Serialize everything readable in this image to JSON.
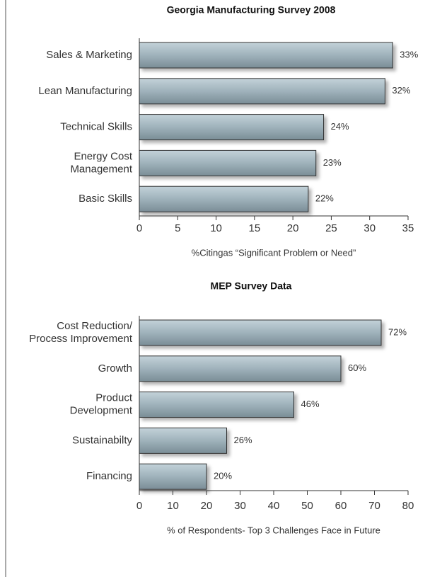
{
  "chart_data": [
    {
      "type": "bar",
      "title": "Georgia Manufacturing Survey 2008",
      "categories": [
        "Sales & Marketing",
        "Lean Manufacturing",
        "Technical Skills",
        "Energy Cost\nManagement",
        "Basic Skills"
      ],
      "values": [
        33,
        32,
        24,
        23,
        22
      ],
      "value_labels": [
        "33%",
        "32%",
        "24%",
        "23%",
        "22%"
      ],
      "color": "#8fa3ad",
      "xlabel": "%Citingas “Significant Problem or Need”",
      "xlim": [
        0,
        35
      ],
      "xticks": [
        0,
        5,
        10,
        15,
        20,
        25,
        30,
        35
      ]
    },
    {
      "type": "bar",
      "title": "MEP Survey Data",
      "categories": [
        "Cost Reduction/\nProcess Improvement",
        "Growth",
        "Product\nDevelopment",
        "Sustainabilty",
        "Financing"
      ],
      "values": [
        72,
        60,
        46,
        26,
        20
      ],
      "value_labels": [
        "72%",
        "60%",
        "46%",
        "26%",
        "20%"
      ],
      "color": "#8fa3ad",
      "xlabel": "% of Respondents- Top 3 Challenges Face in Future",
      "xlim": [
        0,
        80
      ],
      "xticks": [
        0,
        10,
        20,
        30,
        40,
        50,
        60,
        70,
        80
      ]
    }
  ]
}
